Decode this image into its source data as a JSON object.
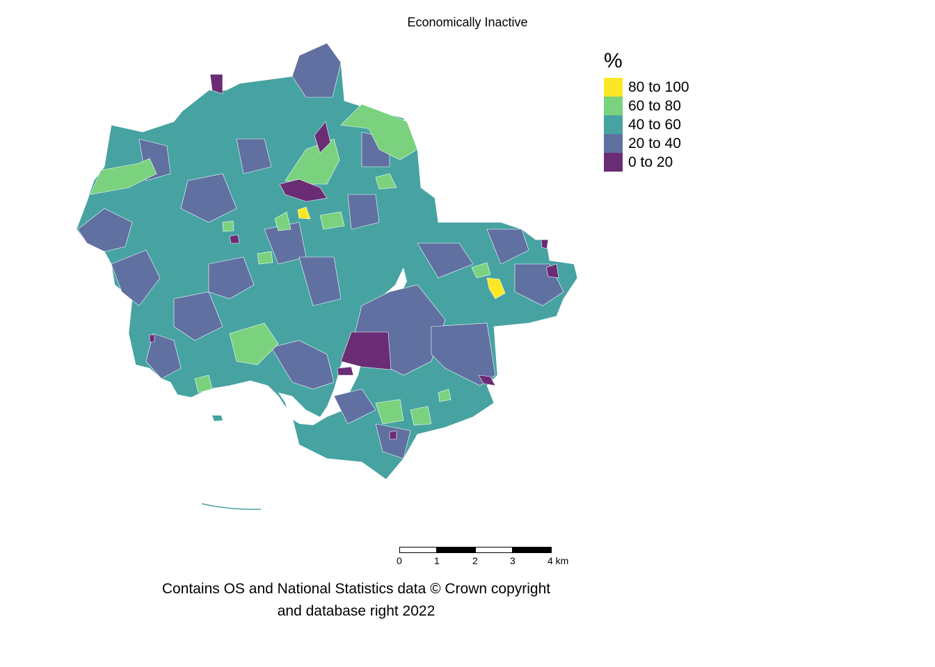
{
  "title": "Economically Inactive",
  "legend": {
    "title": "%",
    "items": [
      {
        "label": "80 to 100",
        "color": "#FDE725"
      },
      {
        "label": "60 to 80",
        "color": "#7AD27F"
      },
      {
        "label": "40 to 60",
        "color": "#47A3A2"
      },
      {
        "label": "20 to 40",
        "color": "#5F70A1"
      },
      {
        "label": "0 to 20",
        "color": "#6A2C74"
      }
    ]
  },
  "scale_bar": {
    "ticks": [
      "0",
      "1",
      "2",
      "3",
      "4 km"
    ]
  },
  "credit": {
    "line1": "Contains OS and National Statistics data © Crown copyright",
    "line2": "and database right 2022"
  }
}
